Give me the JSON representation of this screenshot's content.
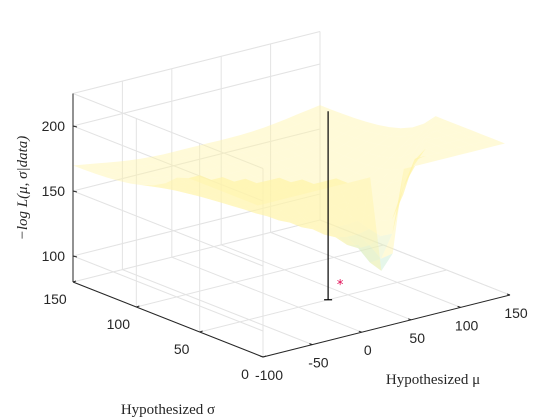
{
  "chart_data": {
    "type": "surface",
    "title": "",
    "xlabel": "Hypothesized μ",
    "ylabel": "Hypothesized σ",
    "zlabel": "−log L(μ, σ|data)",
    "xlim": [
      -100,
      150
    ],
    "ylim": [
      0,
      150
    ],
    "zlim": [
      80,
      225
    ],
    "x_ticks": [
      "-100",
      "-50",
      "0",
      "50",
      "100",
      "150"
    ],
    "y_ticks": [
      "0",
      "50",
      "100",
      "150"
    ],
    "z_ticks": [
      "100",
      "150",
      "200"
    ],
    "grid": true,
    "surface_alpha": 0.45,
    "colors": {
      "low": "#9aa6ff",
      "mid": "#98e4f0",
      "high": "#fff3a8",
      "marker": "#e0004d",
      "line": "#000000",
      "grid": "#e3e3e3",
      "axis": "#262626"
    },
    "minimum_marker": {
      "mu": 30,
      "sigma": 50,
      "neg_log_likelihood": 92
    },
    "vertical_line": {
      "mu": 30,
      "sigma": 50,
      "z_from": 80,
      "z_to": 225
    }
  }
}
